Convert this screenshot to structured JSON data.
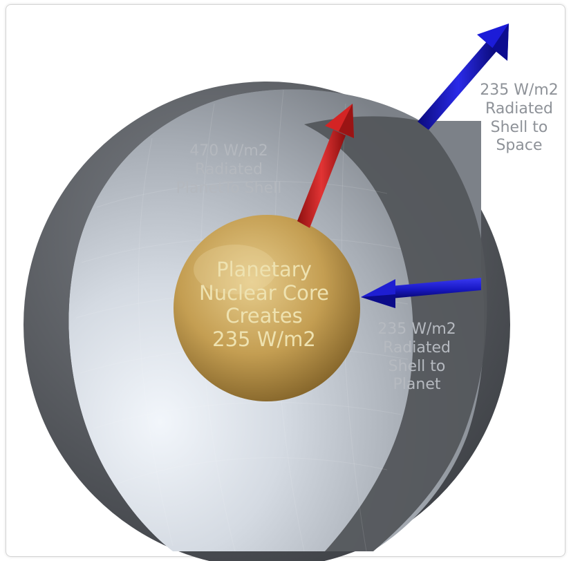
{
  "labels": {
    "shell_to_space": [
      "235 W/m2",
      "Radiated",
      "Shell to",
      "Space"
    ],
    "planet_to_shell": [
      "470 W/m2",
      "Radiated",
      "PlanetTo Shell"
    ],
    "shell_to_planet": [
      "235 W/m2",
      "Radiated",
      "Shell to",
      "Planet"
    ],
    "core": [
      "Planetary",
      "Nuclear Core",
      "Creates",
      "235 W/m2"
    ]
  },
  "colors": {
    "shell_outer": "#5b5e63",
    "shell_inner_light": "#e8edf3",
    "core": "#c8a55c",
    "arrow_up": "#d42424",
    "arrow_blue": "#1414c8"
  },
  "icons": {
    "shell": "sphere-shell-cutaway",
    "core": "gold-sphere",
    "arrows": [
      "red-arrow-outward",
      "blue-arrow-outward",
      "blue-arrow-inward"
    ]
  }
}
